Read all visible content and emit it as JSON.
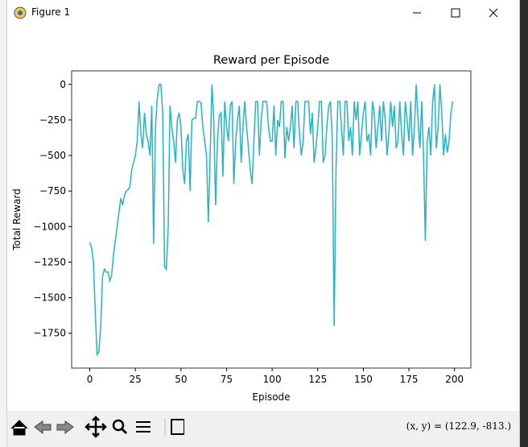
{
  "window": {
    "title": "Figure 1"
  },
  "toolbar": {
    "status": "(x, y) = (122.9, -813.)"
  },
  "chart_data": {
    "type": "line",
    "title": "Reward per Episode",
    "x_label": "Episode",
    "y_label": "Total Reward",
    "color": "#26b3c3",
    "xlim": [
      -9.95,
      208.95
    ],
    "ylim": [
      -1995,
      95
    ],
    "xticks": [
      0,
      25,
      50,
      75,
      100,
      125,
      150,
      175,
      200
    ],
    "yticks": [
      0,
      {
        "value": -250,
        "label": "−250"
      },
      {
        "value": -500,
        "label": "−500"
      },
      {
        "value": -750,
        "label": "−750"
      },
      {
        "value": -1000,
        "label": "−1000"
      },
      {
        "value": -1250,
        "label": "−1250"
      },
      {
        "value": -1500,
        "label": "−1500"
      },
      {
        "value": -1750,
        "label": "−1750"
      }
    ],
    "x": [
      0,
      1,
      2,
      3,
      4,
      5,
      6,
      7,
      8,
      9,
      10,
      11,
      12,
      13,
      14,
      15,
      16,
      17,
      18,
      19,
      20,
      21,
      22,
      23,
      24,
      25,
      26,
      27,
      28,
      29,
      30,
      31,
      32,
      33,
      34,
      35,
      36,
      37,
      38,
      39,
      40,
      41,
      42,
      43,
      44,
      45,
      46,
      47,
      48,
      49,
      50,
      51,
      52,
      53,
      54,
      55,
      56,
      57,
      58,
      59,
      60,
      61,
      62,
      63,
      64,
      65,
      66,
      67,
      68,
      69,
      70,
      71,
      72,
      73,
      74,
      75,
      76,
      77,
      78,
      79,
      80,
      81,
      82,
      83,
      84,
      85,
      86,
      87,
      88,
      89,
      90,
      91,
      92,
      93,
      94,
      95,
      96,
      97,
      98,
      99,
      100,
      101,
      102,
      103,
      104,
      105,
      106,
      107,
      108,
      109,
      110,
      111,
      112,
      113,
      114,
      115,
      116,
      117,
      118,
      119,
      120,
      121,
      122,
      123,
      124,
      125,
      126,
      127,
      128,
      129,
      130,
      131,
      132,
      133,
      134,
      135,
      136,
      137,
      138,
      139,
      140,
      141,
      142,
      143,
      144,
      145,
      146,
      147,
      148,
      149,
      150,
      151,
      152,
      153,
      154,
      155,
      156,
      157,
      158,
      159,
      160,
      161,
      162,
      163,
      164,
      165,
      166,
      167,
      168,
      169,
      170,
      171,
      172,
      173,
      174,
      175,
      176,
      177,
      178,
      179,
      180,
      181,
      182,
      183,
      184,
      185,
      186,
      187,
      188,
      189,
      190,
      191,
      192,
      193,
      194,
      195,
      196,
      197,
      198,
      199
    ],
    "values": [
      -1110,
      -1150,
      -1250,
      -1600,
      -1900,
      -1880,
      -1700,
      -1350,
      -1300,
      -1320,
      -1320,
      -1380,
      -1340,
      -1200,
      -1100,
      -1000,
      -900,
      -800,
      -850,
      -780,
      -750,
      -740,
      -720,
      -600,
      -550,
      -500,
      -400,
      -120,
      -350,
      -450,
      -200,
      -350,
      -400,
      -500,
      -150,
      -1120,
      -300,
      -100,
      0,
      0,
      -200,
      -1280,
      -1300,
      -1000,
      -150,
      -300,
      -400,
      -550,
      -250,
      -200,
      -300,
      -600,
      -700,
      -400,
      -350,
      -750,
      -250,
      -240,
      -240,
      -120,
      -120,
      -130,
      -300,
      -400,
      -500,
      -970,
      -500,
      0,
      -250,
      -850,
      -400,
      -220,
      -200,
      -650,
      -120,
      -300,
      -400,
      -150,
      -120,
      -700,
      -400,
      -250,
      -150,
      -550,
      -300,
      -120,
      -300,
      -450,
      -600,
      -700,
      -400,
      -120,
      -120,
      -500,
      -250,
      -120,
      -120,
      -120,
      -300,
      -400,
      -400,
      -150,
      -500,
      -250,
      -300,
      -120,
      -120,
      -520,
      -300,
      -400,
      -300,
      -150,
      -450,
      -120,
      -120,
      -350,
      -500,
      -400,
      -120,
      -120,
      -120,
      -350,
      -200,
      -550,
      -450,
      -300,
      -120,
      -120,
      -550,
      -500,
      -300,
      -150,
      -120,
      -400,
      -1700,
      -600,
      -120,
      -120,
      -300,
      -500,
      -120,
      -120,
      -400,
      -300,
      -500,
      -120,
      -250,
      -120,
      -500,
      -350,
      -200,
      -120,
      -400,
      -350,
      -500,
      -120,
      -200,
      -450,
      -300,
      -150,
      -400,
      -120,
      -250,
      -500,
      -350,
      -120,
      -300,
      -150,
      -450,
      -400,
      -120,
      -350,
      -500,
      -120,
      -250,
      -400,
      -120,
      -500,
      -300,
      0,
      -250,
      -450,
      -120,
      -500,
      -1100,
      -400,
      -300,
      -500,
      -120,
      0,
      -450,
      -300,
      0,
      -200,
      -500,
      -350,
      -480,
      -400,
      -200,
      -120
    ]
  }
}
